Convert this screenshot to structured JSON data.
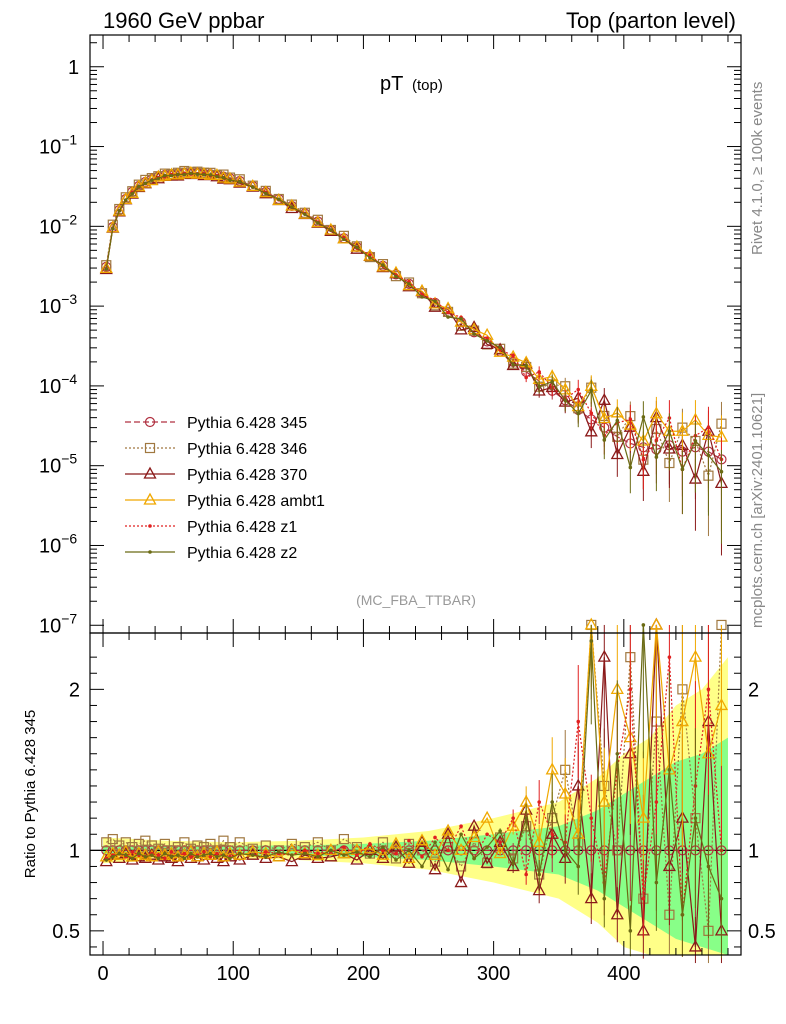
{
  "header": {
    "left": "1960 GeV ppbar",
    "right": "Top (parton level)"
  },
  "side_labels": {
    "rivet": "Rivet 4.1.0, ≥ 100k events",
    "mcplots": "mcplots.cern.ch [arXiv:2401.10621]"
  },
  "colors": {
    "c345": "#b03040",
    "c346": "#a07840",
    "c370": "#8b1a1a",
    "ambt1": "#f0a800",
    "z1": "#e02020",
    "z2": "#6b6b14",
    "band_outer": "#ffff88",
    "band_inner": "#88ff88"
  },
  "chart_data": [
    {
      "type": "line",
      "title": "pT",
      "title_sub": "(top)",
      "watermark": "(MC_FBA_TTBAR)",
      "yscale": "log",
      "xlim": [
        -10,
        490
      ],
      "ylim": [
        8e-08,
        2.5
      ],
      "ytick_labels": [
        {
          "v": 1,
          "base": "1",
          "exp": ""
        },
        {
          "v": 0.1,
          "base": "10",
          "exp": "−1"
        },
        {
          "v": 0.01,
          "base": "10",
          "exp": "−2"
        },
        {
          "v": 0.001,
          "base": "10",
          "exp": "−3"
        },
        {
          "v": 0.0001,
          "base": "10",
          "exp": "−4"
        },
        {
          "v": 1e-05,
          "base": "10",
          "exp": "−5"
        },
        {
          "v": 1e-06,
          "base": "10",
          "exp": "−6"
        },
        {
          "v": 1e-07,
          "base": "10",
          "exp": "−7"
        }
      ],
      "legend_position": "center-left",
      "legend": [
        {
          "key": "c345",
          "label": "Pythia 6.428 345",
          "marker": "circle",
          "dash": "6,3"
        },
        {
          "key": "c346",
          "label": "Pythia 6.428 346",
          "marker": "square",
          "dash": "2,2"
        },
        {
          "key": "c370",
          "label": "Pythia 6.428 370",
          "marker": "triangle",
          "dash": ""
        },
        {
          "key": "ambt1",
          "label": "Pythia 6.428 ambt1",
          "marker": "triangle",
          "dash": ""
        },
        {
          "key": "z1",
          "label": "Pythia 6.428 z1",
          "marker": "dot",
          "dash": "2,2"
        },
        {
          "key": "z2",
          "label": "Pythia 6.428 z2",
          "marker": "dot",
          "dash": ""
        }
      ],
      "reference": {
        "x": [
          2.5,
          7.5,
          12.5,
          17.5,
          22.5,
          27.5,
          32.5,
          37.5,
          42.5,
          47.5,
          52.5,
          57.5,
          62.5,
          67.5,
          72.5,
          77.5,
          82.5,
          87.5,
          92.5,
          97.5,
          105,
          115,
          125,
          135,
          145,
          155,
          165,
          175,
          185,
          195,
          205,
          215,
          225,
          235,
          245,
          255,
          265,
          275,
          285,
          295,
          305,
          315,
          325,
          335,
          345,
          355,
          365,
          375,
          385,
          395,
          405,
          415,
          425,
          435,
          445,
          455,
          465,
          475
        ],
        "y": [
          0.0031,
          0.0098,
          0.016,
          0.022,
          0.027,
          0.032,
          0.036,
          0.039,
          0.042,
          0.044,
          0.045,
          0.046,
          0.047,
          0.047,
          0.047,
          0.046,
          0.045,
          0.044,
          0.042,
          0.04,
          0.037,
          0.032,
          0.027,
          0.022,
          0.018,
          0.0145,
          0.0115,
          0.009,
          0.0071,
          0.0055,
          0.0042,
          0.0032,
          0.0025,
          0.0019,
          0.00145,
          0.0011,
          0.00083,
          0.00063,
          0.00047,
          0.00036,
          0.00027,
          0.0002,
          0.00015,
          0.000115,
          8.7e-05,
          6.6e-05,
          5e-05,
          3.8e-05,
          3e-05,
          2.3e-05,
          1.9e-05,
          1.7e-05,
          1.6e-05,
          1.8e-05,
          1.5e-05,
          1.7e-05,
          1.5e-05,
          1.2e-05
        ]
      },
      "series_scale": {
        "c345": [
          1.0,
          1.0,
          1.0,
          1.0,
          1.0,
          1.0,
          1.0,
          1.0,
          1.0,
          1.0,
          1.0,
          1.0,
          1.0,
          1.0,
          1.0,
          1.0,
          1.0,
          1.0,
          1.0,
          1.0,
          1.0,
          1.0,
          1.0,
          1.0,
          1.0,
          1.0,
          1.0,
          1.0,
          1.0,
          1.0,
          1.0,
          1.0,
          1.0,
          1.0,
          1.0,
          1.0,
          1.0,
          1.0,
          1.0,
          1.0,
          1.0,
          1.0,
          1.0,
          1.0,
          1.0,
          1.0,
          1.0,
          1.0,
          1.0,
          1.0,
          1.0,
          1.0,
          1.0,
          1.0,
          1.0,
          1.0,
          1.0,
          1.0
        ],
        "c346": [
          1.05,
          1.07,
          1.03,
          1.05,
          1.02,
          1.04,
          1.06,
          1.03,
          1.01,
          1.04,
          1.0,
          1.02,
          1.05,
          1.01,
          1.03,
          1.02,
          1.04,
          1.0,
          1.06,
          1.02,
          1.05,
          1.01,
          1.03,
          1.0,
          1.04,
          1.02,
          1.05,
          1.0,
          1.07,
          1.02,
          0.98,
          1.05,
          0.95,
          1.04,
          1.0,
          0.93,
          1.02,
          0.9,
          1.05,
          0.92,
          1.08,
          0.95,
          1.15,
          0.85,
          1.2,
          1.5,
          1.05,
          2.5,
          1.4,
          1.0,
          2.2,
          0.7,
          1.8,
          0.6,
          2.0,
          1.2,
          0.5,
          2.8
        ],
        "c370": [
          0.93,
          0.97,
          0.95,
          0.98,
          0.94,
          0.96,
          0.95,
          0.97,
          0.94,
          0.96,
          0.95,
          0.93,
          0.97,
          0.95,
          0.96,
          0.94,
          0.97,
          0.95,
          0.93,
          0.96,
          0.94,
          0.97,
          0.95,
          0.96,
          0.93,
          0.97,
          0.95,
          0.96,
          0.98,
          0.94,
          1.0,
          0.95,
          1.02,
          0.92,
          1.05,
          0.88,
          1.1,
          0.8,
          1.15,
          0.92,
          1.05,
          0.9,
          1.25,
          0.75,
          1.1,
          0.95,
          1.4,
          0.7,
          2.2,
          0.6,
          1.6,
          0.5,
          2.5,
          0.9,
          1.2,
          0.4,
          1.8,
          0.5
        ],
        "ambt1": [
          0.96,
          0.98,
          0.97,
          0.99,
          0.96,
          0.98,
          0.97,
          0.96,
          0.99,
          0.97,
          0.98,
          0.96,
          0.97,
          0.99,
          0.96,
          0.98,
          0.97,
          0.99,
          0.96,
          0.98,
          0.97,
          0.99,
          0.98,
          0.96,
          1.0,
          0.98,
          0.97,
          1.0,
          0.98,
          1.0,
          1.01,
          0.97,
          1.04,
          0.95,
          1.06,
          0.97,
          1.12,
          1.0,
          1.08,
          1.2,
          0.98,
          1.15,
          1.3,
          1.05,
          1.5,
          1.35,
          1.1,
          2.6,
          1.3,
          2.0,
          1.7,
          1.2,
          2.8,
          1.5,
          1.8,
          2.2,
          1.6,
          1.9
        ],
        "z1": [
          0.95,
          0.97,
          0.98,
          0.96,
          0.99,
          0.97,
          0.96,
          0.98,
          0.97,
          0.95,
          0.99,
          0.97,
          0.98,
          0.96,
          0.97,
          0.99,
          0.96,
          0.98,
          0.97,
          0.96,
          0.98,
          0.97,
          0.99,
          0.98,
          0.97,
          1.0,
          0.98,
          0.99,
          1.02,
          0.97,
          1.04,
          1.0,
          0.98,
          1.06,
          0.96,
          1.08,
          1.0,
          1.15,
          0.95,
          1.1,
          1.05,
          1.2,
          0.85,
          1.3,
          1.1,
          1.05,
          1.8,
          1.2,
          0.8,
          1.5,
          2.0,
          0.7,
          1.3,
          2.2,
          0.6,
          1.4,
          2.0,
          1.0
        ],
        "z2": [
          0.94,
          0.96,
          0.98,
          0.97,
          0.95,
          0.98,
          0.96,
          0.97,
          0.95,
          0.98,
          0.96,
          0.97,
          0.95,
          0.98,
          0.96,
          0.97,
          0.98,
          0.96,
          0.97,
          0.95,
          0.98,
          0.97,
          0.96,
          0.99,
          0.97,
          0.98,
          0.96,
          1.0,
          0.97,
          0.99,
          0.96,
          1.02,
          0.94,
          1.0,
          0.9,
          1.05,
          0.88,
          1.1,
          0.95,
          1.02,
          1.12,
          0.92,
          1.2,
          0.85,
          1.3,
          1.0,
          0.9,
          2.3,
          0.7,
          1.6,
          0.5,
          2.4,
          0.8,
          1.5,
          0.6,
          1.2,
          0.9,
          0.7
        ]
      }
    },
    {
      "type": "line",
      "ylabel": "Ratio to Pythia 6.428 345",
      "xlim": [
        -10,
        490
      ],
      "ylim": [
        0.35,
        2.35
      ],
      "y_ticks": [
        0.5,
        1,
        2
      ],
      "y_tick_labels": [
        "0.5",
        "1",
        "2"
      ],
      "x_ticks": [
        0,
        100,
        200,
        300,
        400
      ],
      "x_tick_labels": [
        "0",
        "100",
        "200",
        "300",
        "400"
      ],
      "reference_line": 1,
      "band": {
        "x": [
          0,
          50,
          100,
          150,
          200,
          250,
          300,
          350,
          380,
          400,
          420,
          440,
          460,
          480
        ],
        "outer_half_width": [
          0.08,
          0.06,
          0.05,
          0.06,
          0.08,
          0.12,
          0.2,
          0.3,
          0.45,
          0.6,
          0.7,
          0.9,
          1.0,
          1.2
        ],
        "inner_half_width": [
          0.03,
          0.03,
          0.03,
          0.03,
          0.04,
          0.06,
          0.1,
          0.15,
          0.25,
          0.35,
          0.45,
          0.55,
          0.6,
          0.7
        ]
      }
    }
  ]
}
